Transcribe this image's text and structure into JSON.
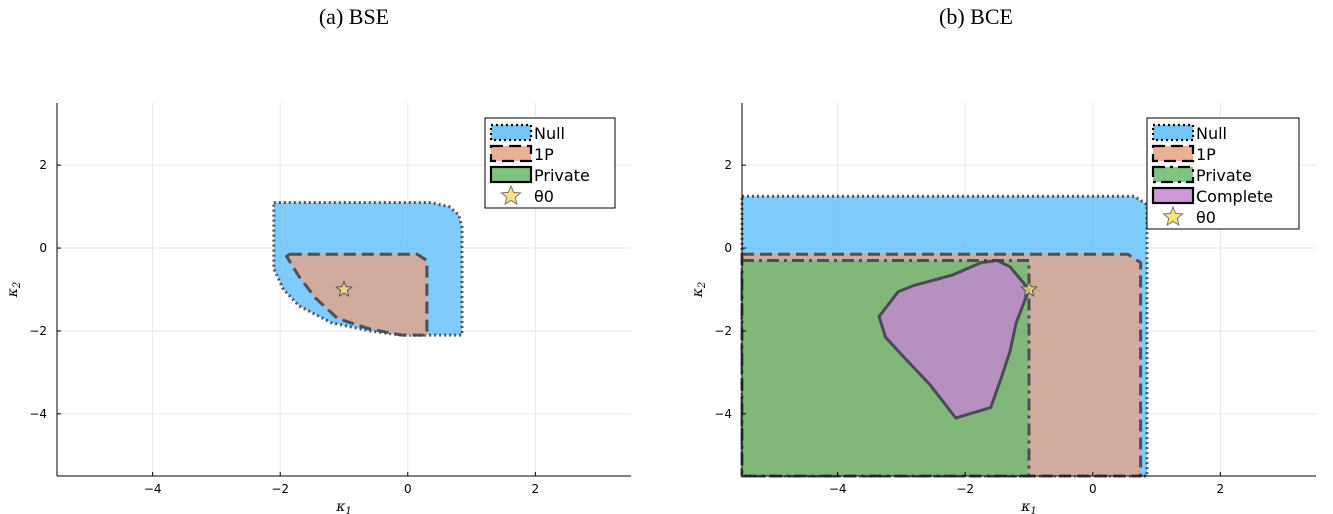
{
  "chart_data": [
    {
      "type": "area",
      "title": "(a) BSE",
      "xlabel": "κ1",
      "ylabel": "κ2",
      "xlim": [
        -5.5,
        3.5
      ],
      "ylim": [
        -5.5,
        3.5
      ],
      "xticks": [
        -4,
        -2,
        0,
        2
      ],
      "yticks": [
        2,
        0,
        -2,
        -4
      ],
      "grid": true,
      "legend_position": "top-right",
      "series": [
        {
          "name": "Null",
          "kind": "region",
          "color": "#5bbcf8",
          "line": "dotted",
          "points": [
            [
              -2.1,
              1.1
            ],
            [
              0.35,
              1.1
            ],
            [
              0.65,
              1.0
            ],
            [
              0.8,
              0.8
            ],
            [
              0.85,
              0.5
            ],
            [
              0.85,
              -2.1
            ],
            [
              -0.1,
              -2.1
            ],
            [
              -0.6,
              -2.0
            ],
            [
              -1.2,
              -1.8
            ],
            [
              -1.7,
              -1.4
            ],
            [
              -1.95,
              -1.0
            ],
            [
              -2.1,
              -0.5
            ],
            [
              -2.1,
              1.1
            ]
          ]
        },
        {
          "name": "1P",
          "kind": "region",
          "color": "#e9a185",
          "line": "dashed",
          "points": [
            [
              -1.85,
              -0.15
            ],
            [
              0.15,
              -0.15
            ],
            [
              0.3,
              -0.3
            ],
            [
              0.3,
              -2.1
            ],
            [
              -0.1,
              -2.1
            ],
            [
              -0.6,
              -1.95
            ],
            [
              -1.1,
              -1.7
            ],
            [
              -1.45,
              -1.2
            ],
            [
              -1.7,
              -0.7
            ],
            [
              -1.9,
              -0.2
            ]
          ]
        },
        {
          "name": "Private",
          "kind": "region",
          "color": "#6aba6d",
          "line": "solid",
          "points": []
        },
        {
          "name": "θ0",
          "kind": "point",
          "color": "#f7e37a",
          "x": -1.0,
          "y": -1.0
        }
      ]
    },
    {
      "type": "area",
      "title": "(b) BCE",
      "xlabel": "κ1",
      "ylabel": "κ2",
      "xlim": [
        -5.5,
        3.5
      ],
      "ylim": [
        -5.5,
        3.5
      ],
      "xticks": [
        -4,
        -2,
        0,
        2
      ],
      "yticks": [
        2,
        0,
        -2,
        -4
      ],
      "grid": true,
      "legend_position": "top-right",
      "series": [
        {
          "name": "Null",
          "kind": "region",
          "color": "#5bbcf8",
          "line": "dotted",
          "points": [
            [
              -5.5,
              1.25
            ],
            [
              0.65,
              1.25
            ],
            [
              0.85,
              1.05
            ],
            [
              0.85,
              -5.5
            ],
            [
              -5.5,
              -5.5
            ]
          ]
        },
        {
          "name": "1P",
          "kind": "region",
          "color": "#e9a185",
          "line": "dashed",
          "points": [
            [
              -5.5,
              -0.15
            ],
            [
              0.55,
              -0.15
            ],
            [
              0.75,
              -0.35
            ],
            [
              0.75,
              -5.5
            ],
            [
              -5.5,
              -5.5
            ]
          ]
        },
        {
          "name": "Private",
          "kind": "region",
          "color": "#6aba6d",
          "line": "dashdot",
          "points": [
            [
              -5.5,
              -0.3
            ],
            [
              -1.0,
              -0.3
            ],
            [
              -1.0,
              -5.5
            ],
            [
              -5.5,
              -5.5
            ]
          ]
        },
        {
          "name": "Complete",
          "kind": "region",
          "color": "#c586d4",
          "line": "solid",
          "points": [
            [
              -1.0,
              -1.0
            ],
            [
              -1.3,
              -0.45
            ],
            [
              -1.5,
              -0.3
            ],
            [
              -1.75,
              -0.35
            ],
            [
              -2.2,
              -0.65
            ],
            [
              -2.8,
              -0.9
            ],
            [
              -3.05,
              -1.05
            ],
            [
              -3.35,
              -1.65
            ],
            [
              -3.25,
              -2.15
            ],
            [
              -2.95,
              -2.65
            ],
            [
              -2.55,
              -3.3
            ],
            [
              -2.15,
              -4.1
            ],
            [
              -1.6,
              -3.85
            ],
            [
              -1.45,
              -3.2
            ],
            [
              -1.3,
              -2.5
            ],
            [
              -1.2,
              -1.8
            ]
          ]
        },
        {
          "name": "θ0",
          "kind": "point",
          "color": "#f7e37a",
          "x": -1.0,
          "y": -1.0
        }
      ]
    }
  ]
}
